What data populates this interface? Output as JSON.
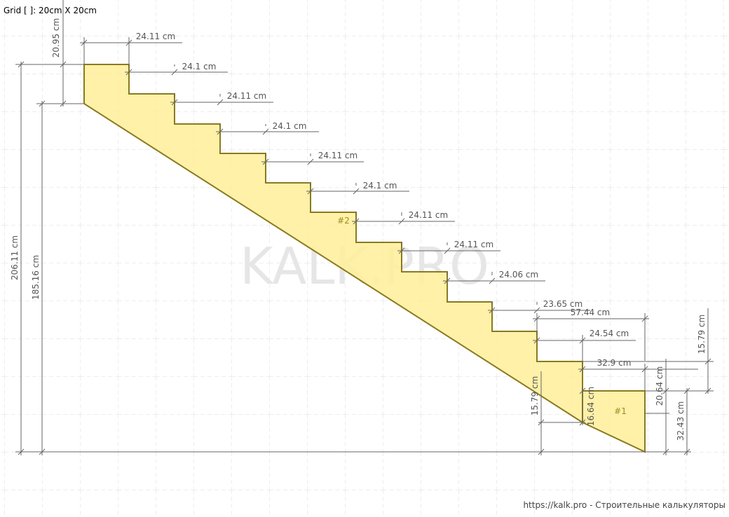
{
  "header": {
    "grid_note": "Grid [ ]: 20cm X 20cm"
  },
  "drawing": {
    "watermark": "KALK.PRO",
    "parts": [
      "#1",
      "#2"
    ],
    "dimensions": [
      "24.11 cm",
      "24.1 cm",
      "24.11 cm",
      "24.1 cm",
      "24.11 cm",
      "24.1 cm",
      "24.11 cm",
      "24.11 cm",
      "24.06 cm",
      "23.65 cm",
      "57.44 cm",
      "24.54 cm",
      "32.9 cm",
      "20.95 cm",
      "206.11 cm",
      "185.16 cm",
      "15.79 cm",
      "20.64 cm",
      "32.43 cm",
      "15.79 cm",
      "16.64 cm"
    ]
  },
  "footer": {
    "link": "https://kalk.pro - Строительные калькуляторы"
  }
}
